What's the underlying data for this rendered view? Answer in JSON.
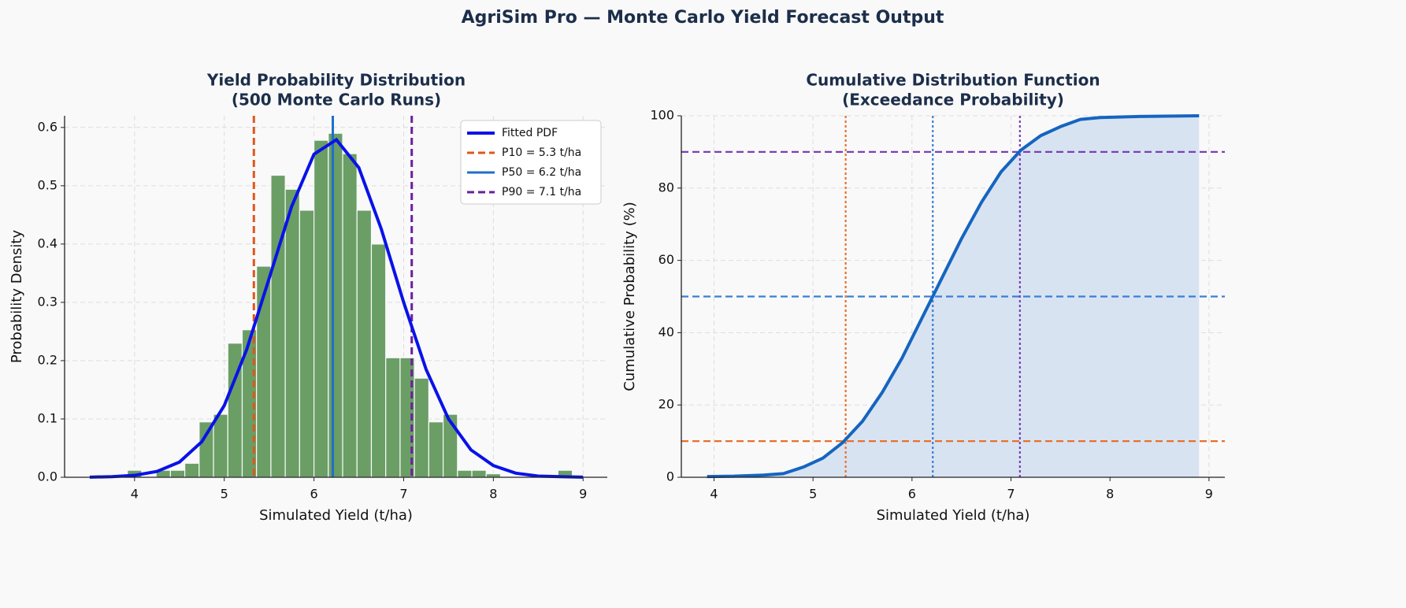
{
  "title": "AgriSim Pro — Monte Carlo Yield Forecast Output",
  "chart_data": [
    {
      "type": "histogram",
      "title": [
        "Yield Probability Distribution",
        "(500 Monte Carlo Runs)"
      ],
      "xlabel": "Simulated Yield (t/ha)",
      "ylabel": "Probability Density",
      "bins": [
        3.92,
        4.08,
        4.24,
        4.4,
        4.56,
        4.72,
        4.88,
        5.04,
        5.2,
        5.36,
        5.52,
        5.68,
        5.84,
        6.0,
        6.16,
        6.32,
        6.48,
        6.64,
        6.8,
        6.96,
        7.12,
        7.28,
        7.44,
        7.6,
        7.76,
        7.92,
        8.08,
        8.24,
        8.4,
        8.56,
        8.72,
        8.88
      ],
      "values": [
        0.012,
        0,
        0.012,
        0.012,
        0.024,
        0.095,
        0.108,
        0.23,
        0.253,
        0.362,
        0.518,
        0.494,
        0.458,
        0.578,
        0.59,
        0.555,
        0.458,
        0.4,
        0.205,
        0.205,
        0.17,
        0.095,
        0.108,
        0.012,
        0.012,
        0.006,
        0,
        0,
        0,
        0,
        0.012
      ],
      "color": "#6a9e65",
      "curve": {
        "name": "Fitted PDF",
        "color": "#0a12e8",
        "x": [
          3.5,
          3.75,
          4.0,
          4.25,
          4.5,
          4.75,
          5.0,
          5.25,
          5.5,
          5.75,
          6.0,
          6.25,
          6.5,
          6.75,
          7.0,
          7.25,
          7.5,
          7.75,
          8.0,
          8.25,
          8.5,
          8.75,
          9.0
        ],
        "values": [
          0.0002,
          0.001,
          0.0033,
          0.01,
          0.026,
          0.061,
          0.123,
          0.219,
          0.341,
          0.464,
          0.554,
          0.579,
          0.531,
          0.426,
          0.3,
          0.185,
          0.1,
          0.047,
          0.02,
          0.007,
          0.002,
          0.001,
          0.0002
        ]
      },
      "vlines": [
        {
          "name": "P10 = 5.3 t/ha",
          "value": 5.33,
          "color": "#e0561b",
          "style": "dashed"
        },
        {
          "name": "P50 = 6.2 t/ha",
          "value": 6.21,
          "color": "#1f6fc9",
          "style": "solid"
        },
        {
          "name": "P90 = 7.1 t/ha",
          "value": 7.09,
          "color": "#6a1fa0",
          "style": "dashed"
        }
      ],
      "xlim": [
        3.22,
        9.27
      ],
      "ylim": [
        0,
        0.62
      ],
      "xticks": [
        4,
        5,
        6,
        7,
        8,
        9
      ],
      "yticks": [
        {
          "value": 0,
          "label": "0.0"
        },
        0.1,
        0.2,
        0.3,
        0.4,
        0.5,
        0.6
      ],
      "grid": true,
      "legend": "upper-right"
    },
    {
      "type": "line",
      "title": [
        "Cumulative Distribution Function",
        "(Exceedance Probability)"
      ],
      "xlabel": "Simulated Yield (t/ha)",
      "ylabel": "Cumulative Probability (%)",
      "x": [
        3.93,
        4.2,
        4.5,
        4.7,
        4.9,
        5.1,
        5.3,
        5.5,
        5.7,
        5.9,
        6.1,
        6.3,
        6.5,
        6.7,
        6.9,
        7.1,
        7.3,
        7.5,
        7.7,
        7.9,
        8.3,
        8.9
      ],
      "values": [
        0.2,
        0.3,
        0.6,
        1.0,
        2.8,
        5.3,
        9.6,
        15.5,
        23.5,
        33,
        44,
        55,
        66,
        76,
        84.5,
        90.5,
        94.5,
        97,
        99,
        99.5,
        99.8,
        100
      ],
      "color": "#1565c0",
      "fill_color": "#d6e2f1",
      "hlines": [
        {
          "value": 10,
          "color": "#e8702a",
          "style": "dashed"
        },
        {
          "value": 50,
          "color": "#3a7fd5",
          "style": "dashed"
        },
        {
          "value": 90,
          "color": "#7b3fb5",
          "style": "dashed"
        }
      ],
      "vlines": [
        {
          "value": 5.33,
          "color": "#e8702a",
          "style": "dotted"
        },
        {
          "value": 6.21,
          "color": "#3a7fd5",
          "style": "dotted"
        },
        {
          "value": 7.09,
          "color": "#7b3fb5",
          "style": "dotted"
        }
      ],
      "xlim": [
        3.67,
        9.16
      ],
      "ylim": [
        0,
        100
      ],
      "xticks": [
        4,
        5,
        6,
        7,
        8,
        9
      ],
      "yticks": [
        0,
        20,
        40,
        60,
        80,
        100
      ],
      "grid": true
    }
  ]
}
